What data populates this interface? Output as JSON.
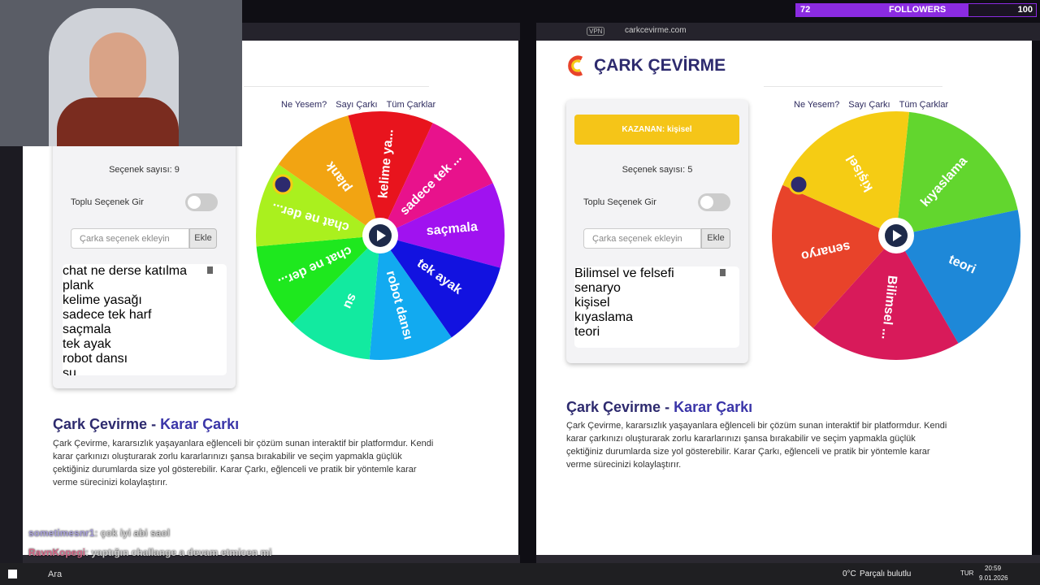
{
  "overlay": {
    "followers_count": 72,
    "followers_label": "FOLLOWERS",
    "followers_goal": 100
  },
  "left_window": {
    "nav": [
      "Ne Yesem?",
      "Sayı Çarkı",
      "Tüm Çarklar"
    ],
    "option_count": "Seçenek sayısı: 9",
    "bulk_label": "Toplu Seçenek Gir",
    "input_placeholder": "Çarka seçenek ekleyin",
    "add_button": "Ekle",
    "options": [
      "chat ne derse katılma",
      "plank",
      "kelime yasağı",
      "sadece tek harf",
      "saçmala",
      "tek ayak",
      "robot dansı",
      "su"
    ],
    "wheel": [
      {
        "label": "kelime ya...",
        "color": "#e8141d"
      },
      {
        "label": "sadece tek ...",
        "color": "#e8128c"
      },
      {
        "label": "saçmala",
        "color": "#a012f0"
      },
      {
        "label": "tek ayak",
        "color": "#1212e0"
      },
      {
        "label": "robot dansı",
        "color": "#12aaf0"
      },
      {
        "label": "su",
        "color": "#12eaa0"
      },
      {
        "label": "chat ne der...",
        "color": "#1ee81e"
      },
      {
        "label": "chat ne der...",
        "color": "#aaf01e"
      },
      {
        "label": "plank",
        "color": "#f2a412"
      }
    ],
    "heading": "Çark Çevirme - ",
    "heading_accent": "Karar Çarkı",
    "description": "Çark Çevirme, kararsızlık yaşayanlara eğlenceli bir çözüm sunan interaktif bir platformdur. Kendi karar çarkınızı oluşturarak zorlu kararlarınızı şansa bırakabilir ve seçim yapmakla güçlük çektiğiniz durumlarda size yol gösterebilir. Karar Çarkı, eğlenceli ve pratik bir yöntemle karar verme sürecinizi kolaylaştırır."
  },
  "right_window": {
    "vpn": "VPN",
    "url": "carkcevirme.com",
    "logo": "ÇARK ÇEVİRME",
    "nav": [
      "Ne Yesem?",
      "Sayı Çarkı",
      "Tüm Çarklar"
    ],
    "winner": "KAZANAN: kişisel",
    "option_count": "Seçenek sayısı: 5",
    "bulk_label": "Toplu Seçenek Gir",
    "input_placeholder": "Çarka seçenek ekleyin",
    "add_button": "Ekle",
    "options": [
      "Bilimsel ve felsefi",
      "senaryo",
      "kişisel",
      "kıyaslama",
      "teori"
    ],
    "wheel": [
      {
        "label": "kıyaslama",
        "color": "#62d62e"
      },
      {
        "label": "teori",
        "color": "#1e88d8"
      },
      {
        "label": "Bilimsel ...",
        "color": "#d81a5a"
      },
      {
        "label": "senaryo",
        "color": "#e8432a"
      },
      {
        "label": "kişisel",
        "color": "#f5cc14"
      }
    ],
    "heading": "Çark Çevirme - ",
    "heading_accent": "Karar Çarkı",
    "description": "Çark Çevirme, kararsızlık yaşayanlara eğlenceli bir çözüm sunan interaktif bir platformdur. Kendi karar çarkınızı oluşturarak zorlu kararlarınızı şansa bırakabilir ve seçim yapmakla güçlük çektiğiniz durumlarda size yol gösterebilir. Karar Çarkı, eğlenceli ve pratik bir yöntemle karar verme sürecinizi kolaylaştırır."
  },
  "chat": [
    {
      "user": "sometimesnr1",
      "message": ": çok iyi abi saol"
    },
    {
      "user": "RavnKopegi",
      "message": ": yaptığın challange a devam etmicen mi"
    }
  ],
  "taskbar": {
    "search": "Ara",
    "temperature": "0°C",
    "weather": "Parçalı bulutlu",
    "language": "TUR",
    "time": "20:59",
    "date": "9.01.2026"
  }
}
